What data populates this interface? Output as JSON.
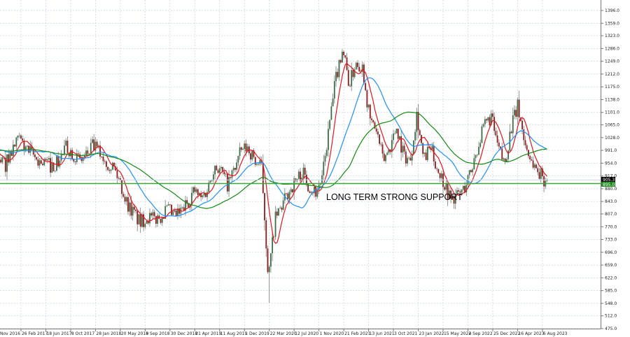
{
  "chart_data": {
    "type": "candlestick",
    "timeframe_note": "weekly candles",
    "title": "",
    "xlabel": "",
    "ylabel": "",
    "ylim": [
      475.0,
      1396.0
    ],
    "grid": true,
    "y_ticks": [
      "1396.0",
      "1359.0",
      "1323.0",
      "1286.0",
      "1249.0",
      "1212.0",
      "1175.0",
      "1138.0",
      "1101.0",
      "1065.0",
      "1028.0",
      "991.0",
      "954.0",
      "917.0",
      "880.0",
      "843.0",
      "807.0",
      "770.0",
      "733.0",
      "696.0",
      "659.0",
      "622.0",
      "585.0",
      "548.0",
      "512.0",
      "475.0"
    ],
    "x_ticks": [
      "Nov 2016",
      "26 Feb 2017",
      "18 Jun 2017",
      "8 Oct 2017",
      "28 Jan 2018",
      "20 May 2018",
      "9 Sep 2018",
      "30 Dec 2018",
      "21 Apr 2019",
      "11 Aug 2019",
      "1 Dec 2019",
      "22 Mar 2020",
      "12 Jul 2020",
      "1 Nov 2020",
      "21 Feb 2021",
      "13 Jun 2021",
      "3 Oct 2021",
      "23 Jan 2022",
      "15 May 2022",
      "4 Sep 2022",
      "25 Dec 2022",
      "16 Apr 2023",
      "6 Aug 2023"
    ],
    "approx_monthly_closes": {
      "start_month": "2016-11",
      "values": [
        960,
        950,
        990,
        1020,
        1000,
        975,
        960,
        955,
        945,
        960,
        1000,
        985,
        960,
        975,
        1005,
        985,
        960,
        945,
        900,
        840,
        810,
        780,
        800,
        790,
        800,
        820,
        800,
        810,
        840,
        875,
        850,
        880,
        950,
        930,
        890,
        940,
        990,
        1000,
        960,
        940,
        620,
        790,
        830,
        870,
        900,
        930,
        890,
        870,
        910,
        1060,
        1200,
        1290,
        1180,
        1250,
        1230,
        1080,
        1050,
        960,
        1000,
        1060,
        980,
        960,
        1100,
        960,
        1000,
        940,
        900,
        850,
        860,
        880,
        930,
        1000,
        1060,
        1090,
        1000,
        950,
        1060,
        1120,
        1010,
        960,
        930,
        905
      ]
    },
    "moving_averages": [
      {
        "color": "#e8141c"
      },
      {
        "color": "#1e90ff"
      },
      {
        "color": "#138a13"
      }
    ],
    "support_level": {
      "value": 895.0,
      "label": "LONG TERM STRONG SUPPORT",
      "color": "#3aa63a"
    },
    "current_price": {
      "value": 905.3,
      "label": "905.3"
    },
    "support_price_label": "895.0",
    "colors": {
      "bull": "#3b6e47",
      "bear": "#8e1a1a",
      "wick": "#7a7a7a",
      "grid": "#c9d3e0"
    }
  }
}
